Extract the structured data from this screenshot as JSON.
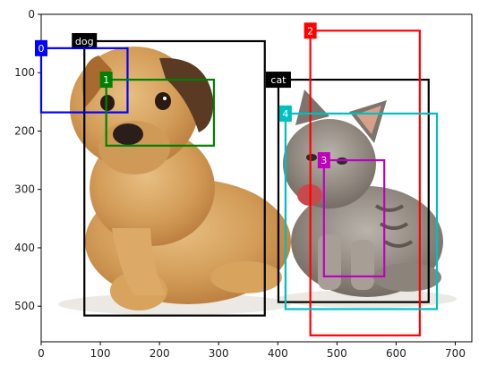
{
  "chart_data": {
    "type": "image-annotation",
    "xlim": [
      0,
      728
    ],
    "ylim": [
      561,
      0
    ],
    "xticks": [
      0,
      100,
      200,
      300,
      400,
      500,
      600,
      700
    ],
    "yticks": [
      0,
      100,
      200,
      300,
      400,
      500
    ],
    "boxes": [
      {
        "label": "dog",
        "color": "#000000",
        "x1": 73,
        "y1": 46,
        "x2": 378,
        "y2": 516
      },
      {
        "label": "cat",
        "color": "#000000",
        "x1": 401,
        "y1": 112,
        "x2": 655,
        "y2": 493
      },
      {
        "label": "0",
        "color": "#0000ff",
        "x1": 0,
        "y1": 58,
        "x2": 146,
        "y2": 168
      },
      {
        "label": "1",
        "color": "#008000",
        "x1": 110,
        "y1": 112,
        "x2": 292,
        "y2": 225
      },
      {
        "label": "2",
        "color": "#ff0000",
        "x1": 455,
        "y1": 28,
        "x2": 640,
        "y2": 550
      },
      {
        "label": "3",
        "color": "#bf00bf",
        "x1": 478,
        "y1": 250,
        "x2": 580,
        "y2": 449
      },
      {
        "label": "4",
        "color": "#00bfbf",
        "x1": 413,
        "y1": 170,
        "x2": 669,
        "y2": 505
      }
    ]
  }
}
